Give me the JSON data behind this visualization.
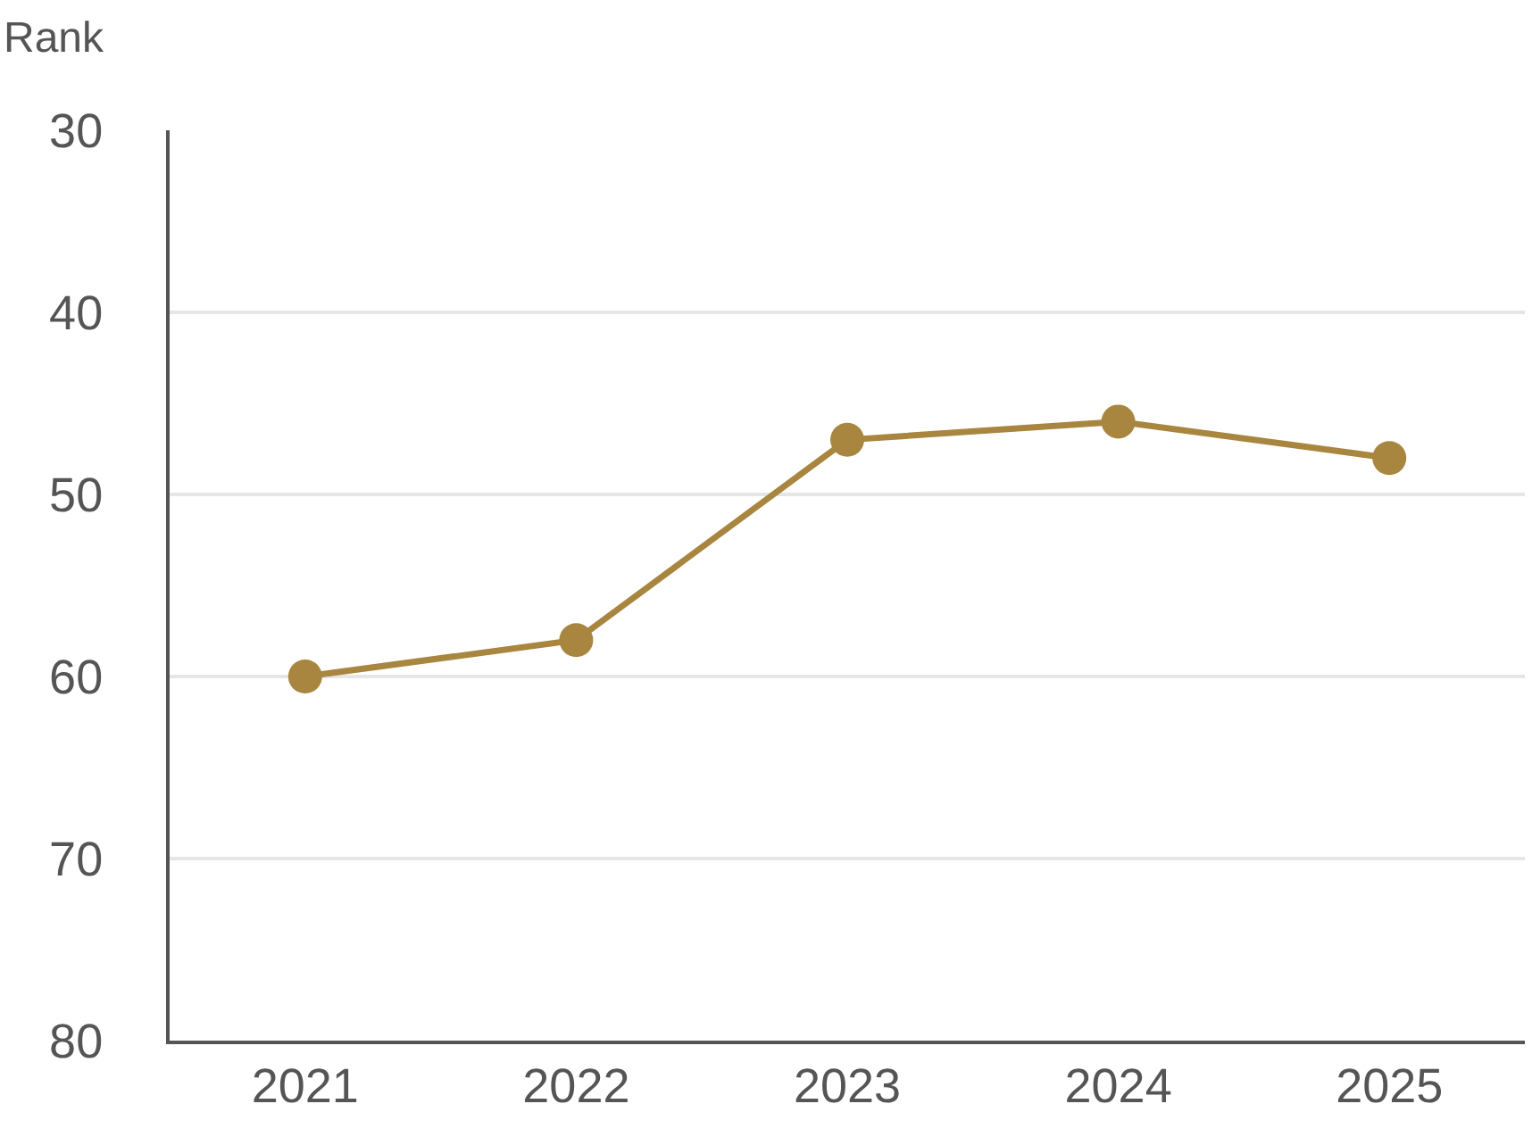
{
  "chart_data": {
    "type": "line",
    "ylabel": "Rank",
    "categories": [
      "2021",
      "2022",
      "2023",
      "2024",
      "2025"
    ],
    "series": [
      {
        "color": "#a8863f",
        "values": [
          60,
          58,
          47,
          46,
          48
        ]
      }
    ],
    "ylim": [
      80,
      30
    ],
    "yticks": [
      30,
      40,
      50,
      60,
      70,
      80
    ],
    "grid": "y",
    "marker": "circle",
    "line_style": "solid"
  }
}
